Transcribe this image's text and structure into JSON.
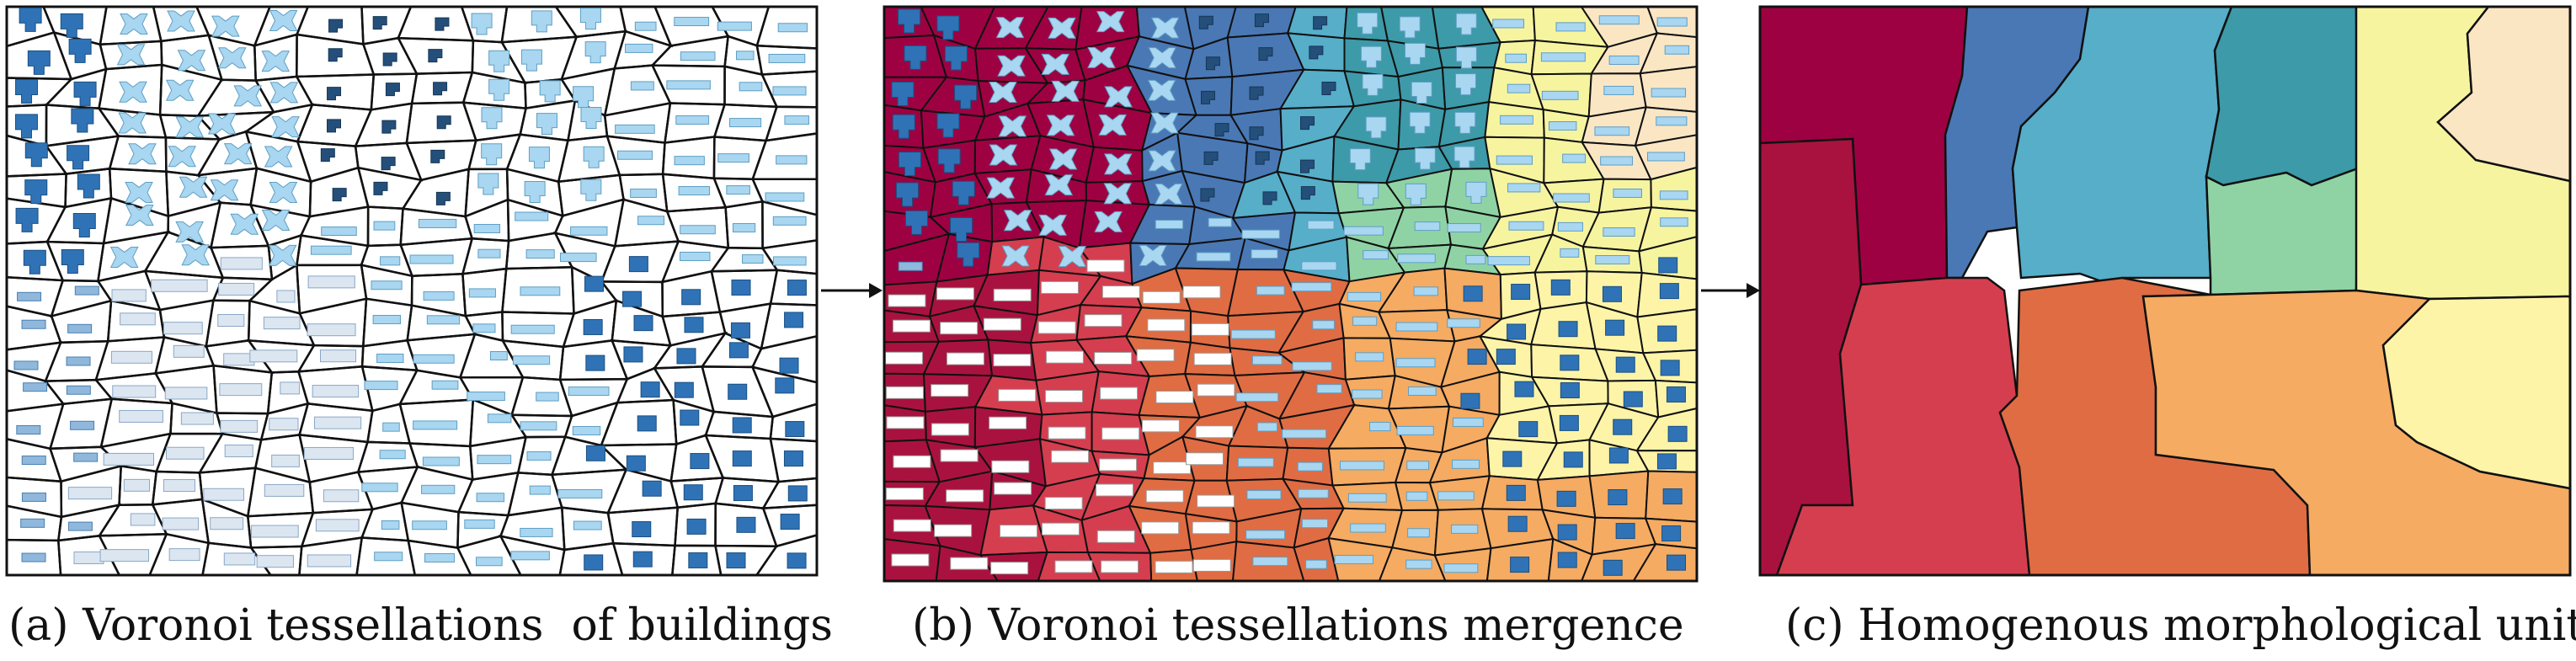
{
  "panels": [
    {
      "id": "a",
      "caption": "(a) Voronoi tessellations  of buildings"
    },
    {
      "id": "b",
      "caption": "(b) Voronoi tessellations mergence"
    },
    {
      "id": "c",
      "caption": "(c) Homogenous morphological units"
    }
  ],
  "colors": {
    "cell_outline": "#111111",
    "building_dark": "#2f73b6",
    "building_light": "#a9d6f0",
    "building_pale": "#dbe6f1",
    "unit_palette": [
      "#9e0142",
      "#4a78b5",
      "#56aec9",
      "#3d9aa8",
      "#8fd3a4",
      "#f7f4a0",
      "#fbe6c4",
      "#d53e4f",
      "#e06c43",
      "#f5ab62",
      "#fdf4a8",
      "#a9123f"
    ]
  }
}
